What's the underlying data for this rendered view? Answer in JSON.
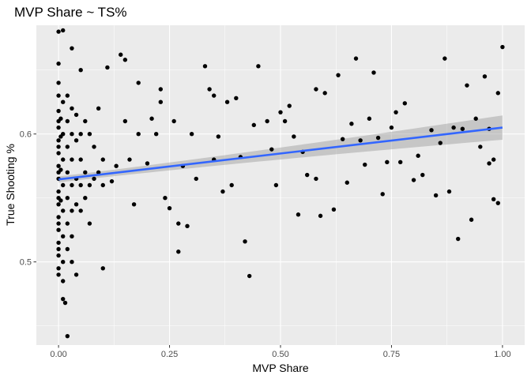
{
  "chart_data": {
    "type": "scatter",
    "title": "MVP Share ~ TS%",
    "xlabel": "MVP Share",
    "ylabel": "True Shooting %",
    "xlim": [
      -0.05,
      1.05
    ],
    "ylim": [
      0.435,
      0.685
    ],
    "x_ticks": [
      0.0,
      0.25,
      0.5,
      0.75,
      1.0
    ],
    "x_tick_labels": [
      "0.00",
      "0.25",
      "0.50",
      "0.75",
      "1.00"
    ],
    "y_ticks": [
      0.5,
      0.6
    ],
    "y_tick_labels": [
      "0.5",
      "0.6"
    ],
    "grid": true,
    "background": "#ebebeb",
    "point_color": "#000000",
    "trend": {
      "method": "lm",
      "intercept": 0.5645,
      "slope": 0.0405,
      "color": "#3366ff",
      "band_color": "#999999",
      "se_at_0": 0.0023,
      "se_at_1": 0.0095
    },
    "points": [
      [
        0.0,
        0.68
      ],
      [
        0.01,
        0.681
      ],
      [
        0.0,
        0.655
      ],
      [
        0.0,
        0.64
      ],
      [
        0.0,
        0.63
      ],
      [
        0.01,
        0.625
      ],
      [
        0.0,
        0.618
      ],
      [
        0.0,
        0.61
      ],
      [
        0.0,
        0.605
      ],
      [
        0.01,
        0.6
      ],
      [
        0.0,
        0.595
      ],
      [
        0.0,
        0.59
      ],
      [
        0.0,
        0.585
      ],
      [
        0.01,
        0.58
      ],
      [
        0.0,
        0.575
      ],
      [
        0.0,
        0.57
      ],
      [
        0.0,
        0.565
      ],
      [
        0.01,
        0.56
      ],
      [
        0.0,
        0.555
      ],
      [
        0.0,
        0.55
      ],
      [
        0.0,
        0.545
      ],
      [
        0.01,
        0.54
      ],
      [
        0.0,
        0.535
      ],
      [
        0.0,
        0.53
      ],
      [
        0.0,
        0.525
      ],
      [
        0.01,
        0.52
      ],
      [
        0.0,
        0.515
      ],
      [
        0.0,
        0.51
      ],
      [
        0.0,
        0.505
      ],
      [
        0.01,
        0.5
      ],
      [
        0.0,
        0.495
      ],
      [
        0.0,
        0.49
      ],
      [
        0.01,
        0.485
      ],
      [
        0.01,
        0.471
      ],
      [
        0.015,
        0.468
      ],
      [
        0.02,
        0.442
      ],
      [
        0.005,
        0.612
      ],
      [
        0.005,
        0.598
      ],
      [
        0.005,
        0.572
      ],
      [
        0.005,
        0.548
      ],
      [
        0.02,
        0.63
      ],
      [
        0.02,
        0.61
      ],
      [
        0.02,
        0.59
      ],
      [
        0.02,
        0.57
      ],
      [
        0.02,
        0.55
      ],
      [
        0.02,
        0.53
      ],
      [
        0.02,
        0.51
      ],
      [
        0.03,
        0.62
      ],
      [
        0.03,
        0.6
      ],
      [
        0.03,
        0.58
      ],
      [
        0.03,
        0.56
      ],
      [
        0.03,
        0.54
      ],
      [
        0.03,
        0.52
      ],
      [
        0.03,
        0.5
      ],
      [
        0.04,
        0.615
      ],
      [
        0.04,
        0.595
      ],
      [
        0.04,
        0.565
      ],
      [
        0.04,
        0.545
      ],
      [
        0.04,
        0.49
      ],
      [
        0.05,
        0.6
      ],
      [
        0.05,
        0.58
      ],
      [
        0.05,
        0.56
      ],
      [
        0.05,
        0.54
      ],
      [
        0.06,
        0.61
      ],
      [
        0.06,
        0.57
      ],
      [
        0.06,
        0.55
      ],
      [
        0.07,
        0.6
      ],
      [
        0.07,
        0.56
      ],
      [
        0.07,
        0.53
      ],
      [
        0.08,
        0.59
      ],
      [
        0.08,
        0.565
      ],
      [
        0.09,
        0.62
      ],
      [
        0.09,
        0.57
      ],
      [
        0.1,
        0.56
      ],
      [
        0.1,
        0.58
      ],
      [
        0.03,
        0.667
      ],
      [
        0.05,
        0.65
      ],
      [
        0.11,
        0.652
      ],
      [
        0.1,
        0.495
      ],
      [
        0.12,
        0.563
      ],
      [
        0.13,
        0.575
      ],
      [
        0.14,
        0.662
      ],
      [
        0.15,
        0.658
      ],
      [
        0.15,
        0.61
      ],
      [
        0.16,
        0.58
      ],
      [
        0.17,
        0.545
      ],
      [
        0.18,
        0.64
      ],
      [
        0.18,
        0.6
      ],
      [
        0.2,
        0.577
      ],
      [
        0.21,
        0.612
      ],
      [
        0.22,
        0.6
      ],
      [
        0.23,
        0.625
      ],
      [
        0.23,
        0.635
      ],
      [
        0.24,
        0.55
      ],
      [
        0.25,
        0.542
      ],
      [
        0.26,
        0.61
      ],
      [
        0.27,
        0.508
      ],
      [
        0.27,
        0.53
      ],
      [
        0.28,
        0.575
      ],
      [
        0.29,
        0.528
      ],
      [
        0.3,
        0.6
      ],
      [
        0.31,
        0.565
      ],
      [
        0.33,
        0.653
      ],
      [
        0.34,
        0.635
      ],
      [
        0.35,
        0.63
      ],
      [
        0.35,
        0.58
      ],
      [
        0.36,
        0.598
      ],
      [
        0.37,
        0.555
      ],
      [
        0.38,
        0.625
      ],
      [
        0.39,
        0.56
      ],
      [
        0.4,
        0.628
      ],
      [
        0.41,
        0.582
      ],
      [
        0.42,
        0.516
      ],
      [
        0.43,
        0.489
      ],
      [
        0.44,
        0.607
      ],
      [
        0.45,
        0.653
      ],
      [
        0.47,
        0.61
      ],
      [
        0.48,
        0.588
      ],
      [
        0.49,
        0.56
      ],
      [
        0.5,
        0.617
      ],
      [
        0.51,
        0.61
      ],
      [
        0.52,
        0.622
      ],
      [
        0.53,
        0.598
      ],
      [
        0.54,
        0.537
      ],
      [
        0.55,
        0.586
      ],
      [
        0.56,
        0.568
      ],
      [
        0.58,
        0.635
      ],
      [
        0.58,
        0.565
      ],
      [
        0.59,
        0.536
      ],
      [
        0.6,
        0.632
      ],
      [
        0.62,
        0.541
      ],
      [
        0.63,
        0.646
      ],
      [
        0.64,
        0.596
      ],
      [
        0.65,
        0.562
      ],
      [
        0.66,
        0.608
      ],
      [
        0.67,
        0.659
      ],
      [
        0.68,
        0.595
      ],
      [
        0.7,
        0.612
      ],
      [
        0.71,
        0.648
      ],
      [
        0.72,
        0.597
      ],
      [
        0.73,
        0.553
      ],
      [
        0.74,
        0.578
      ],
      [
        0.75,
        0.605
      ],
      [
        0.76,
        0.617
      ],
      [
        0.78,
        0.624
      ],
      [
        0.8,
        0.564
      ],
      [
        0.81,
        0.583
      ],
      [
        0.82,
        0.568
      ],
      [
        0.84,
        0.603
      ],
      [
        0.85,
        0.552
      ],
      [
        0.87,
        0.659
      ],
      [
        0.88,
        0.555
      ],
      [
        0.89,
        0.605
      ],
      [
        0.9,
        0.518
      ],
      [
        0.91,
        0.604
      ],
      [
        0.92,
        0.638
      ],
      [
        0.93,
        0.533
      ],
      [
        0.94,
        0.612
      ],
      [
        0.95,
        0.59
      ],
      [
        0.96,
        0.645
      ],
      [
        0.97,
        0.577
      ],
      [
        0.98,
        0.58
      ],
      [
        0.98,
        0.549
      ],
      [
        0.99,
        0.632
      ],
      [
        1.0,
        0.668
      ],
      [
        0.99,
        0.546
      ],
      [
        0.97,
        0.604
      ],
      [
        0.86,
        0.593
      ],
      [
        0.77,
        0.578
      ],
      [
        0.69,
        0.576
      ]
    ]
  }
}
